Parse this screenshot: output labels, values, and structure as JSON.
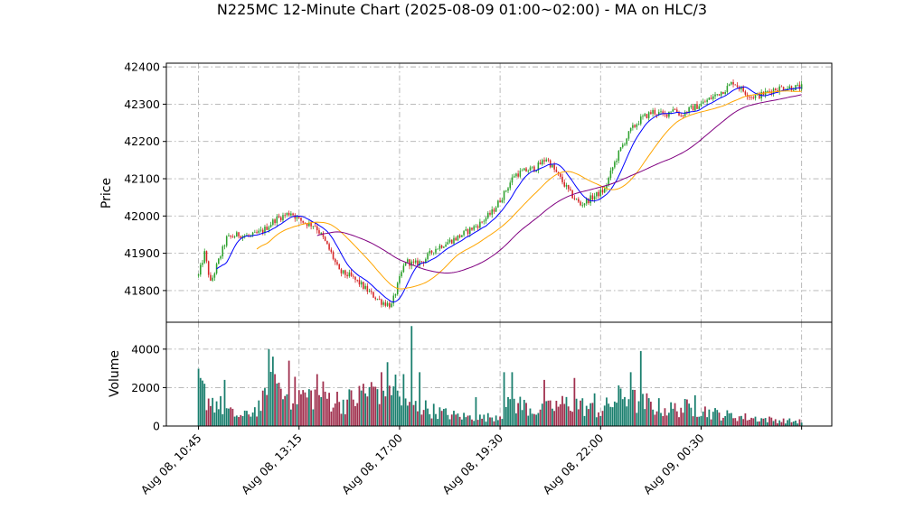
{
  "chart_data": {
    "type": "candlestick",
    "title": "N225MC 12-Minute Chart (2025-08-09 01:00~02:00) - MA on HLC/3",
    "panels": {
      "price": {
        "ylabel": "Price",
        "ylim": [
          41715,
          42410
        ],
        "yticks": [
          41800,
          41900,
          42000,
          42100,
          42200,
          42300,
          42400
        ]
      },
      "volume": {
        "ylabel": "Volume",
        "ylim": [
          0,
          5400
        ],
        "yticks": [
          0,
          2000,
          4000
        ]
      }
    },
    "xaxis": {
      "ticks": [
        {
          "bar": 0,
          "label": "Aug 08, 10:45"
        },
        {
          "bar": 50,
          "label": "Aug 08, 13:15"
        },
        {
          "bar": 100,
          "label": "Aug 08, 17:00"
        },
        {
          "bar": 150,
          "label": "Aug 08, 19:30"
        },
        {
          "bar": 200,
          "label": "Aug 08, 22:00"
        },
        {
          "bar": 250,
          "label": "Aug 09, 00:30"
        },
        {
          "bar": 300,
          "label": ""
        }
      ],
      "xlim": [
        -16,
        315
      ]
    },
    "grid": true,
    "colors": {
      "up": "#2ca02c",
      "down": "#d62728",
      "vol_up": "#1a7f6e",
      "vol_down": "#a0304e",
      "ma_short": "#0000ff",
      "ma_mid": "#ffa500",
      "ma_long": "#800080",
      "grid": "#b0b0b0"
    },
    "ma_periods": [
      5,
      15,
      30
    ],
    "price_path": [
      [
        0,
        41840
      ],
      [
        3,
        41900
      ],
      [
        6,
        41820
      ],
      [
        10,
        41880
      ],
      [
        14,
        41940
      ],
      [
        20,
        41950
      ],
      [
        26,
        41945
      ],
      [
        32,
        41960
      ],
      [
        38,
        41990
      ],
      [
        42,
        42000
      ],
      [
        46,
        42010
      ],
      [
        50,
        41990
      ],
      [
        54,
        41980
      ],
      [
        58,
        41975
      ],
      [
        62,
        41940
      ],
      [
        66,
        41900
      ],
      [
        70,
        41850
      ],
      [
        75,
        41840
      ],
      [
        80,
        41820
      ],
      [
        86,
        41790
      ],
      [
        91,
        41770
      ],
      [
        96,
        41760
      ],
      [
        100,
        41830
      ],
      [
        103,
        41880
      ],
      [
        107,
        41870
      ],
      [
        112,
        41880
      ],
      [
        117,
        41910
      ],
      [
        122,
        41925
      ],
      [
        128,
        41940
      ],
      [
        134,
        41960
      ],
      [
        140,
        41980
      ],
      [
        146,
        42010
      ],
      [
        152,
        42060
      ],
      [
        157,
        42110
      ],
      [
        162,
        42120
      ],
      [
        168,
        42130
      ],
      [
        173,
        42155
      ],
      [
        180,
        42100
      ],
      [
        185,
        42060
      ],
      [
        190,
        42030
      ],
      [
        196,
        42050
      ],
      [
        202,
        42070
      ],
      [
        206,
        42130
      ],
      [
        210,
        42180
      ],
      [
        215,
        42230
      ],
      [
        220,
        42260
      ],
      [
        226,
        42280
      ],
      [
        232,
        42270
      ],
      [
        236,
        42290
      ],
      [
        240,
        42270
      ],
      [
        244,
        42285
      ],
      [
        250,
        42300
      ],
      [
        256,
        42320
      ],
      [
        262,
        42340
      ],
      [
        266,
        42360
      ],
      [
        270,
        42340
      ],
      [
        275,
        42320
      ],
      [
        280,
        42325
      ],
      [
        286,
        42340
      ],
      [
        291,
        42345
      ],
      [
        295,
        42345
      ],
      [
        300,
        42345
      ]
    ],
    "volume_path": [
      [
        0,
        2200
      ],
      [
        5,
        1500
      ],
      [
        10,
        1200
      ],
      [
        16,
        700
      ],
      [
        22,
        500
      ],
      [
        28,
        900
      ],
      [
        34,
        1500
      ],
      [
        37,
        2600
      ],
      [
        42,
        1700
      ],
      [
        48,
        1800
      ],
      [
        54,
        1600
      ],
      [
        60,
        1800
      ],
      [
        66,
        1500
      ],
      [
        72,
        1300
      ],
      [
        78,
        1500
      ],
      [
        86,
        1900
      ],
      [
        92,
        2300
      ],
      [
        97,
        2500
      ],
      [
        100,
        1500
      ],
      [
        104,
        1000
      ],
      [
        110,
        1100
      ],
      [
        118,
        800
      ],
      [
        126,
        600
      ],
      [
        134,
        500
      ],
      [
        142,
        450
      ],
      [
        150,
        600
      ],
      [
        156,
        1300
      ],
      [
        162,
        1100
      ],
      [
        170,
        800
      ],
      [
        178,
        1100
      ],
      [
        186,
        1300
      ],
      [
        193,
        1000
      ],
      [
        200,
        800
      ],
      [
        206,
        1300
      ],
      [
        212,
        1700
      ],
      [
        218,
        1300
      ],
      [
        226,
        1100
      ],
      [
        234,
        900
      ],
      [
        242,
        1000
      ],
      [
        250,
        900
      ],
      [
        256,
        700
      ],
      [
        262,
        600
      ],
      [
        270,
        500
      ],
      [
        280,
        400
      ],
      [
        290,
        300
      ],
      [
        300,
        250
      ]
    ],
    "volume_spikes": [
      [
        1,
        2500
      ],
      [
        13,
        2400
      ],
      [
        35,
        4000
      ],
      [
        38,
        2700
      ],
      [
        45,
        3400
      ],
      [
        59,
        2700
      ],
      [
        82,
        2200
      ],
      [
        91,
        2800
      ],
      [
        95,
        2800
      ],
      [
        102,
        2700
      ],
      [
        95,
        2100
      ],
      [
        106,
        5200
      ],
      [
        110,
        2800
      ],
      [
        138,
        1500
      ],
      [
        152,
        2800
      ],
      [
        156,
        2800
      ],
      [
        172,
        2400
      ],
      [
        187,
        2500
      ],
      [
        197,
        1700
      ],
      [
        220,
        3900
      ],
      [
        215,
        2800
      ],
      [
        223,
        1700
      ],
      [
        247,
        1600
      ]
    ]
  }
}
